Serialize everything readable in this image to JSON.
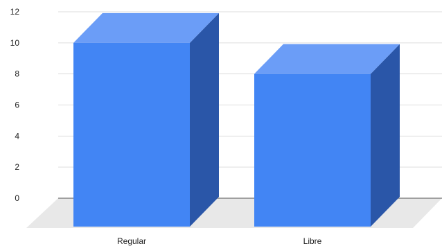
{
  "chart_data": {
    "type": "bar",
    "style": "3d",
    "categories": [
      "Regular",
      "Libre"
    ],
    "values": [
      10,
      8
    ],
    "title": "",
    "xlabel": "",
    "ylabel": "",
    "ylim": [
      0,
      12
    ],
    "yticks": [
      0,
      2,
      4,
      6,
      8,
      10,
      12
    ],
    "grid": true,
    "legend": "none",
    "colors": {
      "front": "#4285F4",
      "top": "#6B9DF7",
      "side": "#2A56A8",
      "floor": "#E8E8E8",
      "grid": "#DDDDDD",
      "axis": "#555555"
    }
  }
}
